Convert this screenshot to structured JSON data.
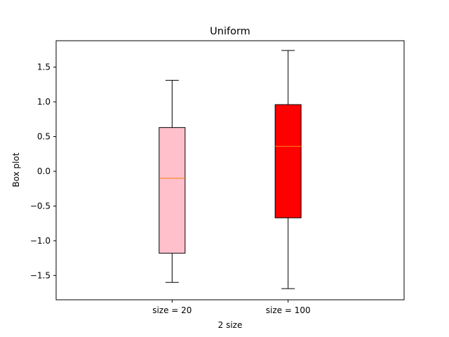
{
  "chart_data": {
    "type": "box",
    "title": "Uniform",
    "xlabel": "2 size",
    "ylabel": "Box plot",
    "ylim": [
      -1.85,
      1.88
    ],
    "y_ticks": [
      -1.5,
      -1.0,
      -0.5,
      0.0,
      0.5,
      1.0,
      1.5
    ],
    "y_tick_labels": [
      "−1.5",
      "−1.0",
      "−0.5",
      "0.0",
      "0.5",
      "1.0",
      "1.5"
    ],
    "grid": false,
    "categories": [
      "size = 20",
      "size = 100"
    ],
    "boxes": [
      {
        "label": "size = 20",
        "whisker_low": -1.6,
        "q1": -1.18,
        "median": -0.1,
        "q3": 0.63,
        "whisker_high": 1.31,
        "fill": "#ffc0cb"
      },
      {
        "label": "size = 100",
        "whisker_low": -1.69,
        "q1": -0.67,
        "median": 0.36,
        "q3": 0.96,
        "whisker_high": 1.74,
        "fill": "#ff0000"
      }
    ],
    "median_color": "#ff7f0e"
  }
}
